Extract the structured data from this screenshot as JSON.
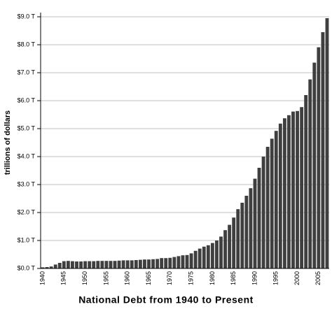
{
  "chart_data": {
    "type": "bar",
    "title": "National Debt from 1940 to Present",
    "y_label": "trillions of dollars",
    "categories": [
      "1940",
      null,
      null,
      null,
      null,
      "1945",
      null,
      null,
      null,
      null,
      "1950",
      null,
      null,
      null,
      null,
      "1955",
      null,
      null,
      null,
      null,
      "1960",
      null,
      null,
      null,
      null,
      "1965",
      null,
      null,
      null,
      null,
      "1970",
      null,
      null,
      null,
      null,
      "1975",
      null,
      null,
      null,
      null,
      "1980",
      null,
      null,
      null,
      null,
      "1985",
      null,
      null,
      null,
      null,
      "1990",
      null,
      null,
      null,
      null,
      "1995",
      null,
      null,
      null,
      null,
      "2000",
      null,
      null,
      null,
      null,
      "2005",
      null,
      null
    ],
    "values": [
      0.04,
      0.05,
      0.07,
      0.14,
      0.2,
      0.26,
      0.27,
      0.26,
      0.25,
      0.25,
      0.26,
      0.26,
      0.26,
      0.27,
      0.27,
      0.27,
      0.27,
      0.27,
      0.28,
      0.29,
      0.29,
      0.29,
      0.3,
      0.31,
      0.32,
      0.32,
      0.33,
      0.34,
      0.37,
      0.37,
      0.38,
      0.41,
      0.44,
      0.47,
      0.48,
      0.54,
      0.63,
      0.71,
      0.78,
      0.83,
      0.91,
      1.0,
      1.14,
      1.37,
      1.56,
      1.82,
      2.12,
      2.35,
      2.6,
      2.87,
      3.21,
      3.6,
      4.0,
      4.35,
      4.64,
      4.92,
      5.18,
      5.37,
      5.48,
      5.61,
      5.63,
      5.77,
      6.2,
      6.76,
      7.36,
      7.91,
      8.45,
      8.95
    ],
    "color": "#3f3f3f",
    "ylim": [
      0,
      9
    ],
    "yticks": [
      {
        "value": 0,
        "label": "$0.0 T"
      },
      {
        "value": 1,
        "label": "$1.0 T"
      },
      {
        "value": 2,
        "label": "$2.0 T"
      },
      {
        "value": 3,
        "label": "$3.0 T"
      },
      {
        "value": 4,
        "label": "$4.0 T"
      },
      {
        "value": 5,
        "label": "$5.0 T"
      },
      {
        "value": 6,
        "label": "$6.0 T"
      },
      {
        "value": 7,
        "label": "$7.0 T"
      },
      {
        "value": 8,
        "label": "$8.0 T"
      },
      {
        "value": 9,
        "label": "$9.0 T"
      }
    ],
    "grid": true
  }
}
